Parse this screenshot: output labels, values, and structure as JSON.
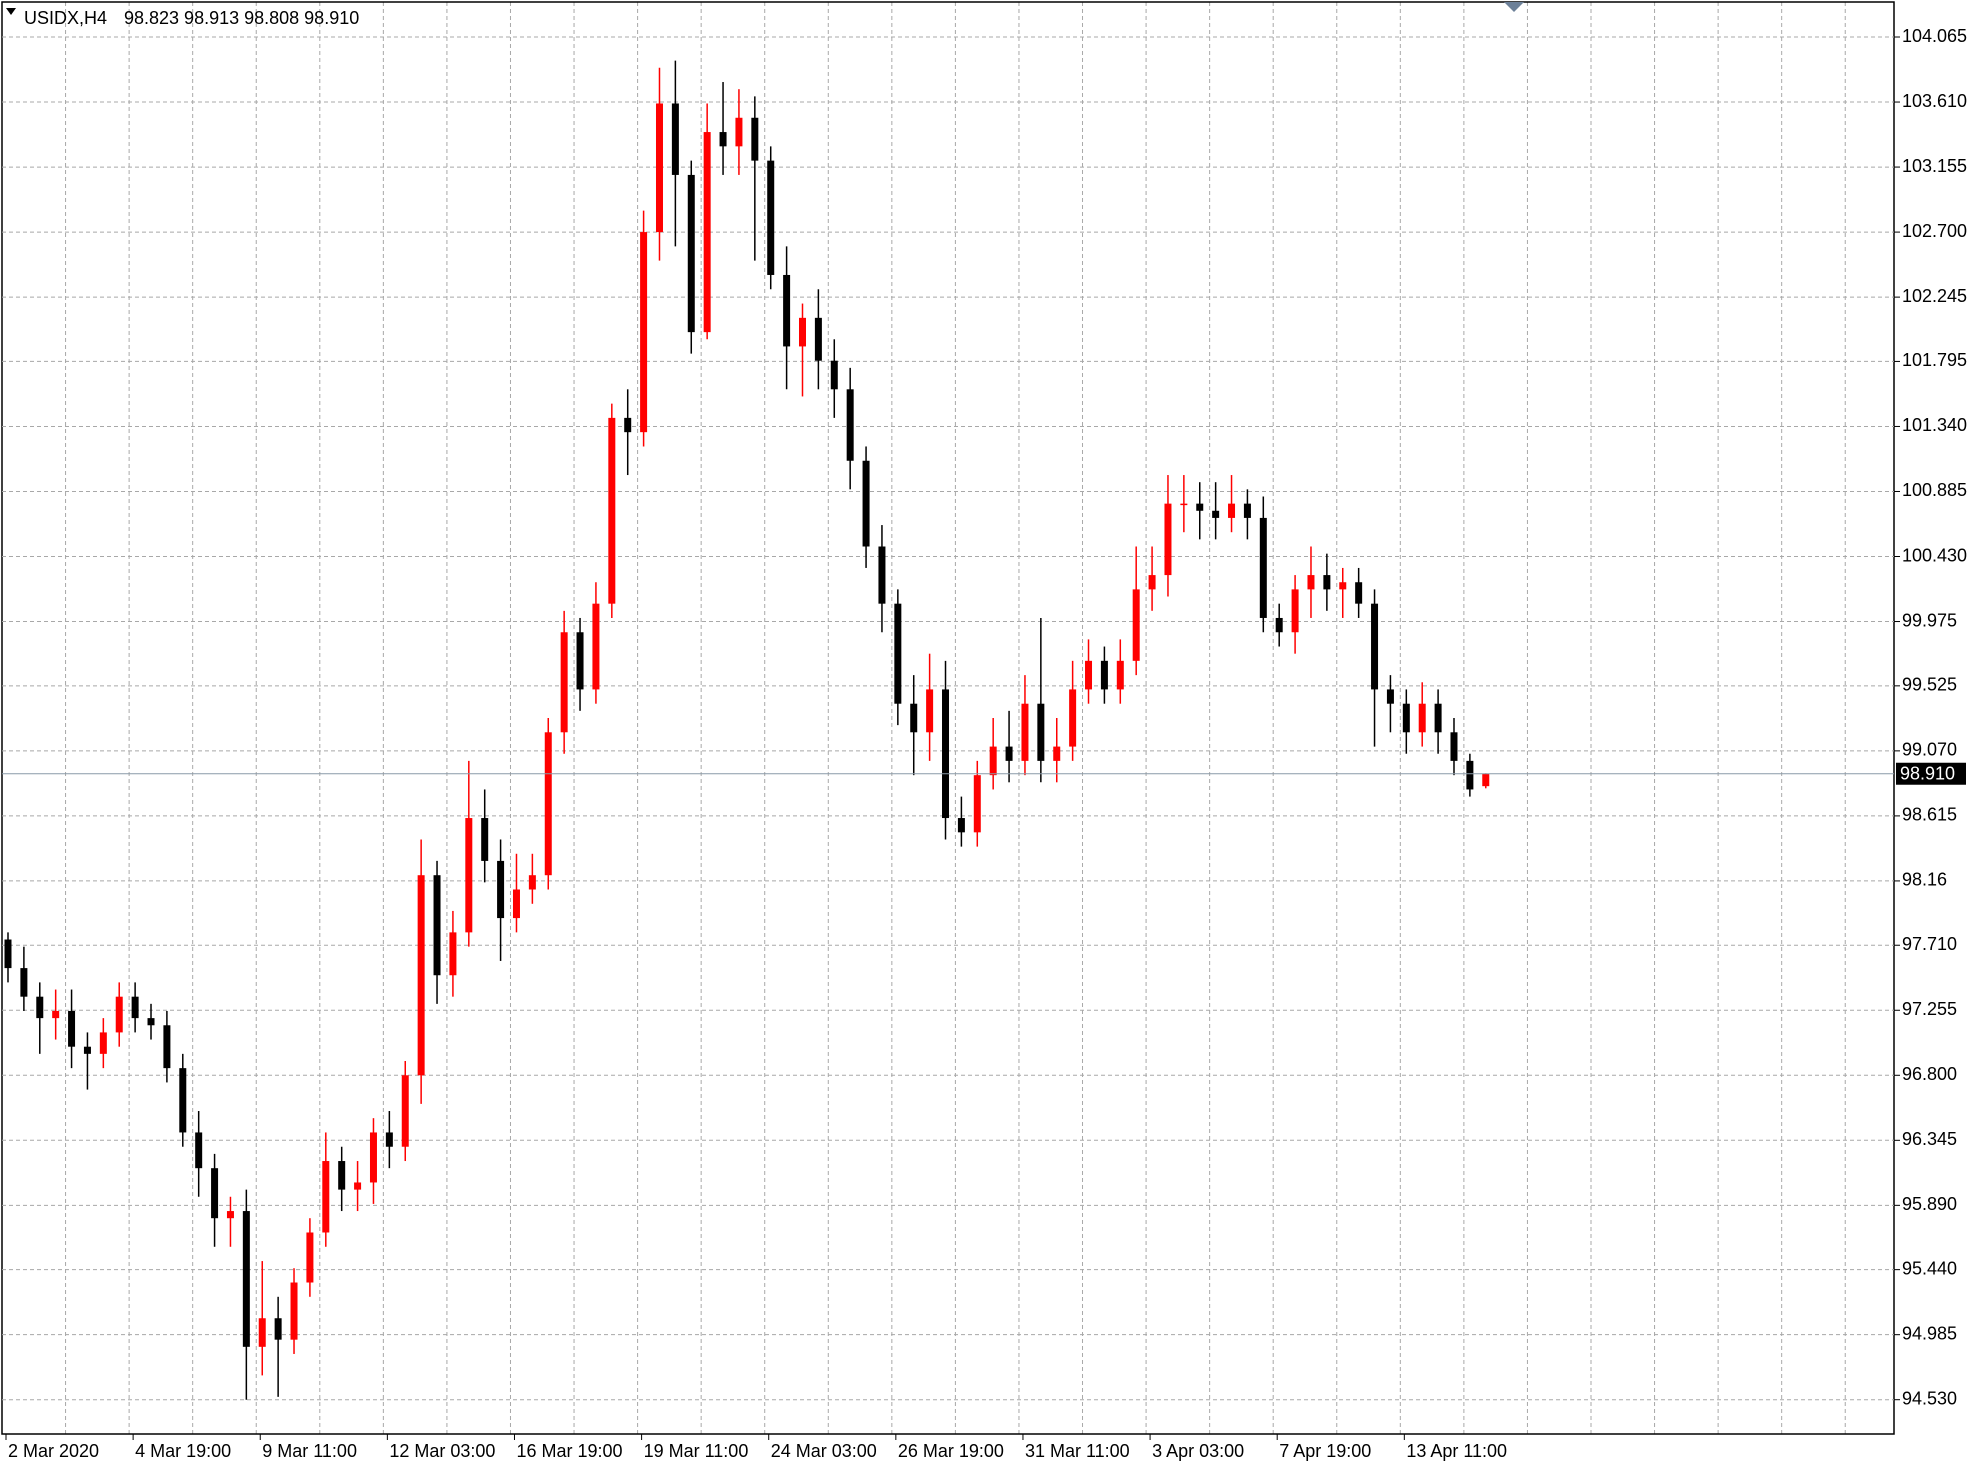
{
  "chart_data": {
    "type": "candlestick",
    "symbol": "USIDX,H4",
    "info": "98.823 98.913 98.808 98.910",
    "up_color": "#ff0000",
    "down_color": "#000000",
    "grid": true,
    "categories": [
      "2 Mar 2020",
      null,
      null,
      null,
      null,
      null,
      null,
      null,
      "4 Mar 19:00",
      null,
      null,
      null,
      null,
      null,
      null,
      null,
      "9 Mar 11:00",
      null,
      null,
      null,
      null,
      null,
      null,
      null,
      "12 Mar 03:00",
      null,
      null,
      null,
      null,
      null,
      null,
      null,
      "16 Mar 19:00",
      null,
      null,
      null,
      null,
      null,
      null,
      null,
      "19 Mar 11:00",
      null,
      null,
      null,
      null,
      null,
      null,
      null,
      "24 Mar 03:00",
      null,
      null,
      null,
      null,
      null,
      null,
      null,
      "26 Mar 19:00",
      null,
      null,
      null,
      null,
      null,
      null,
      null,
      "31 Mar 11:00",
      null,
      null,
      null,
      null,
      null,
      null,
      null,
      "3 Apr 03:00",
      null,
      null,
      null,
      null,
      null,
      null,
      null,
      "7 Apr 19:00",
      null,
      null,
      null,
      null,
      null,
      null,
      null,
      "13 Apr 11:00",
      null,
      null,
      null,
      null,
      null
    ],
    "open": [
      97.75,
      97.55,
      97.35,
      97.2,
      97.25,
      97.0,
      96.95,
      97.1,
      97.35,
      97.2,
      97.15,
      96.85,
      96.4,
      96.15,
      95.8,
      95.85,
      94.9,
      95.1,
      94.95,
      95.35,
      95.7,
      96.2,
      96.0,
      96.05,
      96.4,
      96.3,
      96.8,
      98.2,
      97.5,
      97.8,
      98.6,
      98.3,
      97.9,
      98.1,
      98.2,
      99.2,
      99.9,
      99.5,
      100.1,
      101.4,
      101.3,
      102.7,
      103.6,
      103.1,
      102.0,
      103.4,
      103.3,
      103.5,
      103.2,
      102.4,
      101.9,
      102.1,
      101.8,
      101.6,
      101.1,
      100.5,
      100.1,
      99.4,
      99.2,
      99.5,
      98.6,
      98.5,
      98.9,
      99.1,
      99.0,
      99.4,
      99.0,
      99.1,
      99.5,
      99.7,
      99.5,
      99.7,
      100.2,
      100.3,
      100.8,
      100.8,
      100.75,
      100.7,
      100.8,
      100.7,
      100.0,
      99.9,
      100.2,
      100.3,
      100.2,
      100.25,
      100.1,
      99.5,
      99.4,
      99.2,
      99.4,
      99.2,
      99.0,
      98.823
    ],
    "high": [
      97.8,
      97.7,
      97.45,
      97.4,
      97.4,
      97.1,
      97.2,
      97.45,
      97.45,
      97.3,
      97.25,
      96.95,
      96.55,
      96.25,
      95.95,
      96.0,
      95.5,
      95.25,
      95.45,
      95.8,
      96.4,
      96.3,
      96.2,
      96.5,
      96.55,
      96.9,
      98.45,
      98.3,
      97.95,
      99.0,
      98.8,
      98.45,
      98.35,
      98.35,
      99.3,
      100.05,
      100.0,
      100.25,
      101.5,
      101.6,
      102.85,
      103.85,
      103.9,
      103.2,
      103.6,
      103.75,
      103.7,
      103.65,
      103.3,
      102.6,
      102.2,
      102.3,
      101.95,
      101.75,
      101.2,
      100.65,
      100.2,
      99.6,
      99.75,
      99.7,
      98.75,
      99.0,
      99.3,
      99.35,
      99.6,
      100.0,
      99.3,
      99.7,
      99.85,
      99.8,
      99.85,
      100.5,
      100.5,
      101.0,
      101.0,
      100.95,
      100.95,
      101.0,
      100.9,
      100.85,
      100.1,
      100.3,
      100.5,
      100.45,
      100.35,
      100.35,
      100.2,
      99.6,
      99.5,
      99.55,
      99.5,
      99.3,
      99.05,
      98.913
    ],
    "low": [
      97.45,
      97.25,
      96.95,
      97.05,
      96.85,
      96.7,
      96.85,
      97.0,
      97.1,
      97.05,
      96.75,
      96.3,
      95.95,
      95.6,
      95.6,
      94.53,
      94.7,
      94.55,
      94.85,
      95.25,
      95.6,
      95.85,
      95.85,
      95.9,
      96.15,
      96.2,
      96.6,
      97.3,
      97.35,
      97.7,
      98.15,
      97.6,
      97.8,
      98.0,
      98.1,
      99.05,
      99.35,
      99.4,
      100.0,
      101.0,
      101.2,
      102.5,
      102.6,
      101.85,
      101.95,
      103.1,
      103.1,
      102.5,
      102.3,
      101.6,
      101.55,
      101.6,
      101.4,
      100.9,
      100.35,
      99.9,
      99.25,
      98.9,
      99.0,
      98.45,
      98.4,
      98.4,
      98.8,
      98.85,
      98.9,
      98.85,
      98.85,
      99.0,
      99.4,
      99.4,
      99.4,
      99.6,
      100.05,
      100.15,
      100.6,
      100.55,
      100.55,
      100.6,
      100.55,
      99.9,
      99.8,
      99.75,
      100.0,
      100.05,
      100.0,
      100.0,
      99.1,
      99.2,
      99.05,
      99.1,
      99.05,
      98.9,
      98.75,
      98.808
    ],
    "close": [
      97.55,
      97.35,
      97.2,
      97.25,
      97.0,
      96.95,
      97.1,
      97.35,
      97.2,
      97.15,
      96.85,
      96.4,
      96.15,
      95.8,
      95.85,
      94.9,
      95.1,
      94.95,
      95.35,
      95.7,
      96.2,
      96.0,
      96.05,
      96.4,
      96.3,
      96.8,
      98.2,
      97.5,
      97.8,
      98.6,
      98.3,
      97.9,
      98.1,
      98.2,
      99.2,
      99.9,
      99.5,
      100.1,
      101.4,
      101.3,
      102.7,
      103.6,
      103.1,
      102.0,
      103.4,
      103.3,
      103.5,
      103.2,
      102.4,
      101.9,
      102.1,
      101.8,
      101.6,
      101.1,
      100.5,
      100.1,
      99.4,
      99.2,
      99.5,
      98.6,
      98.5,
      98.9,
      99.1,
      99.0,
      99.4,
      99.0,
      99.1,
      99.5,
      99.7,
      99.5,
      99.7,
      100.2,
      100.3,
      100.8,
      100.8,
      100.75,
      100.7,
      100.8,
      100.7,
      100.0,
      99.9,
      100.2,
      100.3,
      100.2,
      100.25,
      100.1,
      99.5,
      99.4,
      99.2,
      99.4,
      99.2,
      99.0,
      98.8,
      98.91
    ],
    "current_price": {
      "value": 98.91,
      "label": "98.910"
    },
    "ylim": [
      94.29,
      104.31
    ],
    "yticks": [
      104.065,
      {
        "value": 103.61,
        "label": "103.610"
      },
      103.155,
      {
        "value": 102.7,
        "label": "102.700"
      },
      102.245,
      101.795,
      {
        "value": 101.34,
        "label": "101.340"
      },
      100.885,
      {
        "value": 100.43,
        "label": "100.430"
      },
      99.975,
      99.525,
      {
        "value": 99.07,
        "label": "99.070"
      },
      98.615,
      98.16,
      {
        "value": 97.71,
        "label": "97.710"
      },
      97.255,
      {
        "value": 96.8,
        "label": "96.800"
      },
      96.345,
      {
        "value": 95.89,
        "label": "95.890"
      },
      {
        "value": 95.44,
        "label": "95.440"
      },
      94.985,
      {
        "value": 94.53,
        "label": "94.530"
      }
    ]
  }
}
